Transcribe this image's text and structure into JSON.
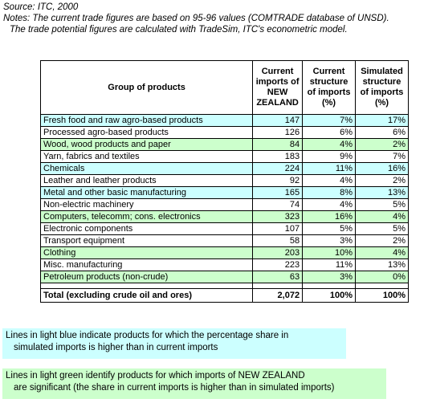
{
  "notes": {
    "source": "Source: ITC, 2000",
    "line1": "Notes: The current trade figures are based on 95-96 values (COMTRADE database of UNSD).",
    "line2": "The trade potential figures are calculated with TradeSim, ITC's econometric model."
  },
  "table": {
    "headers": {
      "group": "Group of products",
      "current_imports": [
        "Current",
        "imports of",
        "NEW",
        "ZEALAND"
      ],
      "current_structure": [
        "Current",
        "structure",
        "of imports",
        "(%)"
      ],
      "simulated_structure": [
        "Simulated",
        "structure",
        "of imports",
        "(%)"
      ]
    },
    "rows": [
      {
        "group": "Fresh food and raw agro-based products",
        "imports": "147",
        "current": "7%",
        "simulated": "17%",
        "highlight": "blue"
      },
      {
        "group": "Processed agro-based products",
        "imports": "126",
        "current": "6%",
        "simulated": "6%",
        "highlight": "none"
      },
      {
        "group": "Wood, wood products and paper",
        "imports": "84",
        "current": "4%",
        "simulated": "2%",
        "highlight": "green"
      },
      {
        "group": "Yarn, fabrics and textiles",
        "imports": "183",
        "current": "9%",
        "simulated": "7%",
        "highlight": "none"
      },
      {
        "group": "Chemicals",
        "imports": "224",
        "current": "11%",
        "simulated": "16%",
        "highlight": "blue"
      },
      {
        "group": "Leather and leather products",
        "imports": "92",
        "current": "4%",
        "simulated": "2%",
        "highlight": "none"
      },
      {
        "group": "Metal and other basic manufacturing",
        "imports": "165",
        "current": "8%",
        "simulated": "13%",
        "highlight": "blue"
      },
      {
        "group": "Non-electric machinery",
        "imports": "74",
        "current": "4%",
        "simulated": "5%",
        "highlight": "none"
      },
      {
        "group": "Computers, telecomm; cons. electronics",
        "imports": "323",
        "current": "16%",
        "simulated": "4%",
        "highlight": "green"
      },
      {
        "group": "Electronic components",
        "imports": "107",
        "current": "5%",
        "simulated": "5%",
        "highlight": "none"
      },
      {
        "group": "Transport equipment",
        "imports": "58",
        "current": "3%",
        "simulated": "2%",
        "highlight": "none"
      },
      {
        "group": "Clothing",
        "imports": "203",
        "current": "10%",
        "simulated": "4%",
        "highlight": "green"
      },
      {
        "group": "Misc. manufacturing",
        "imports": "223",
        "current": "11%",
        "simulated": "13%",
        "highlight": "none"
      },
      {
        "group": "Petroleum products (non-crude)",
        "imports": "63",
        "current": "3%",
        "simulated": "0%",
        "highlight": "green"
      }
    ],
    "total": {
      "group": "Total (excluding crude oil and ores)",
      "imports": "2,072",
      "current": "100%",
      "simulated": "100%"
    }
  },
  "legend": {
    "blue_line1": "Lines in light blue indicate products for which the percentage share in",
    "blue_line2": "simulated imports is higher than in current imports",
    "green_line1": "Lines in light green identify products for which imports of NEW ZEALAND",
    "green_line2": "are significant (the share in current imports is higher than in simulated imports)"
  },
  "colors": {
    "blue": "#ccffff",
    "green": "#ccffcc"
  }
}
